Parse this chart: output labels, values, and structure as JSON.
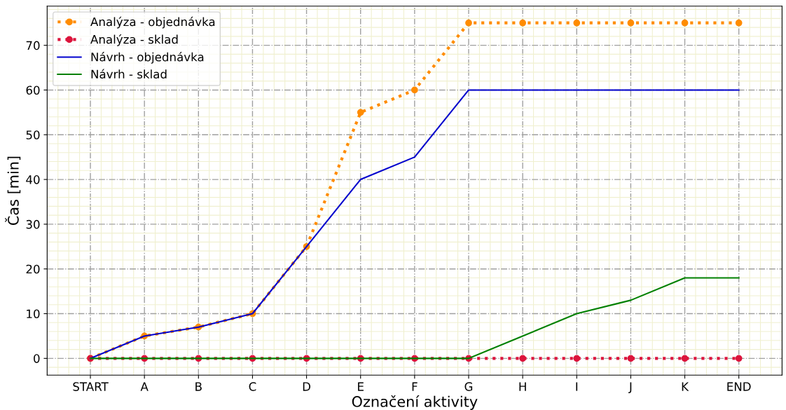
{
  "chart_data": {
    "type": "line",
    "xlabel": "Označení aktivity",
    "ylabel": "Čas [min]",
    "categories": [
      "START",
      "A",
      "B",
      "C",
      "D",
      "E",
      "F",
      "G",
      "H",
      "I",
      "J",
      "K",
      "END"
    ],
    "series": [
      {
        "name": "Analýza - objednávka",
        "color": "#ff8c00",
        "marker": "circle",
        "line_style": "dotted",
        "values": [
          0,
          5,
          7,
          10,
          25,
          55,
          60,
          75,
          75,
          75,
          75,
          75,
          75
        ]
      },
      {
        "name": "Analýza - sklad",
        "color": "#dc143c",
        "marker": "circle",
        "line_style": "dotted",
        "values": [
          0,
          0,
          0,
          0,
          0,
          0,
          0,
          0,
          0,
          0,
          0,
          0,
          0
        ]
      },
      {
        "name": "Návrh - objednávka",
        "color": "#0000cd",
        "marker": "none",
        "line_style": "solid",
        "values": [
          0,
          5,
          7,
          10,
          25,
          40,
          45,
          60,
          60,
          60,
          60,
          60,
          60
        ]
      },
      {
        "name": "Návrh - sklad",
        "color": "#008000",
        "marker": "none",
        "line_style": "solid",
        "values": [
          0,
          0,
          0,
          0,
          0,
          0,
          0,
          0,
          5,
          10,
          13,
          18,
          18
        ]
      }
    ],
    "ylim": [
      -3.75,
      78.75
    ],
    "yticks": [
      0,
      10,
      20,
      30,
      40,
      50,
      60,
      70
    ],
    "grid": true,
    "legend": "top left"
  }
}
